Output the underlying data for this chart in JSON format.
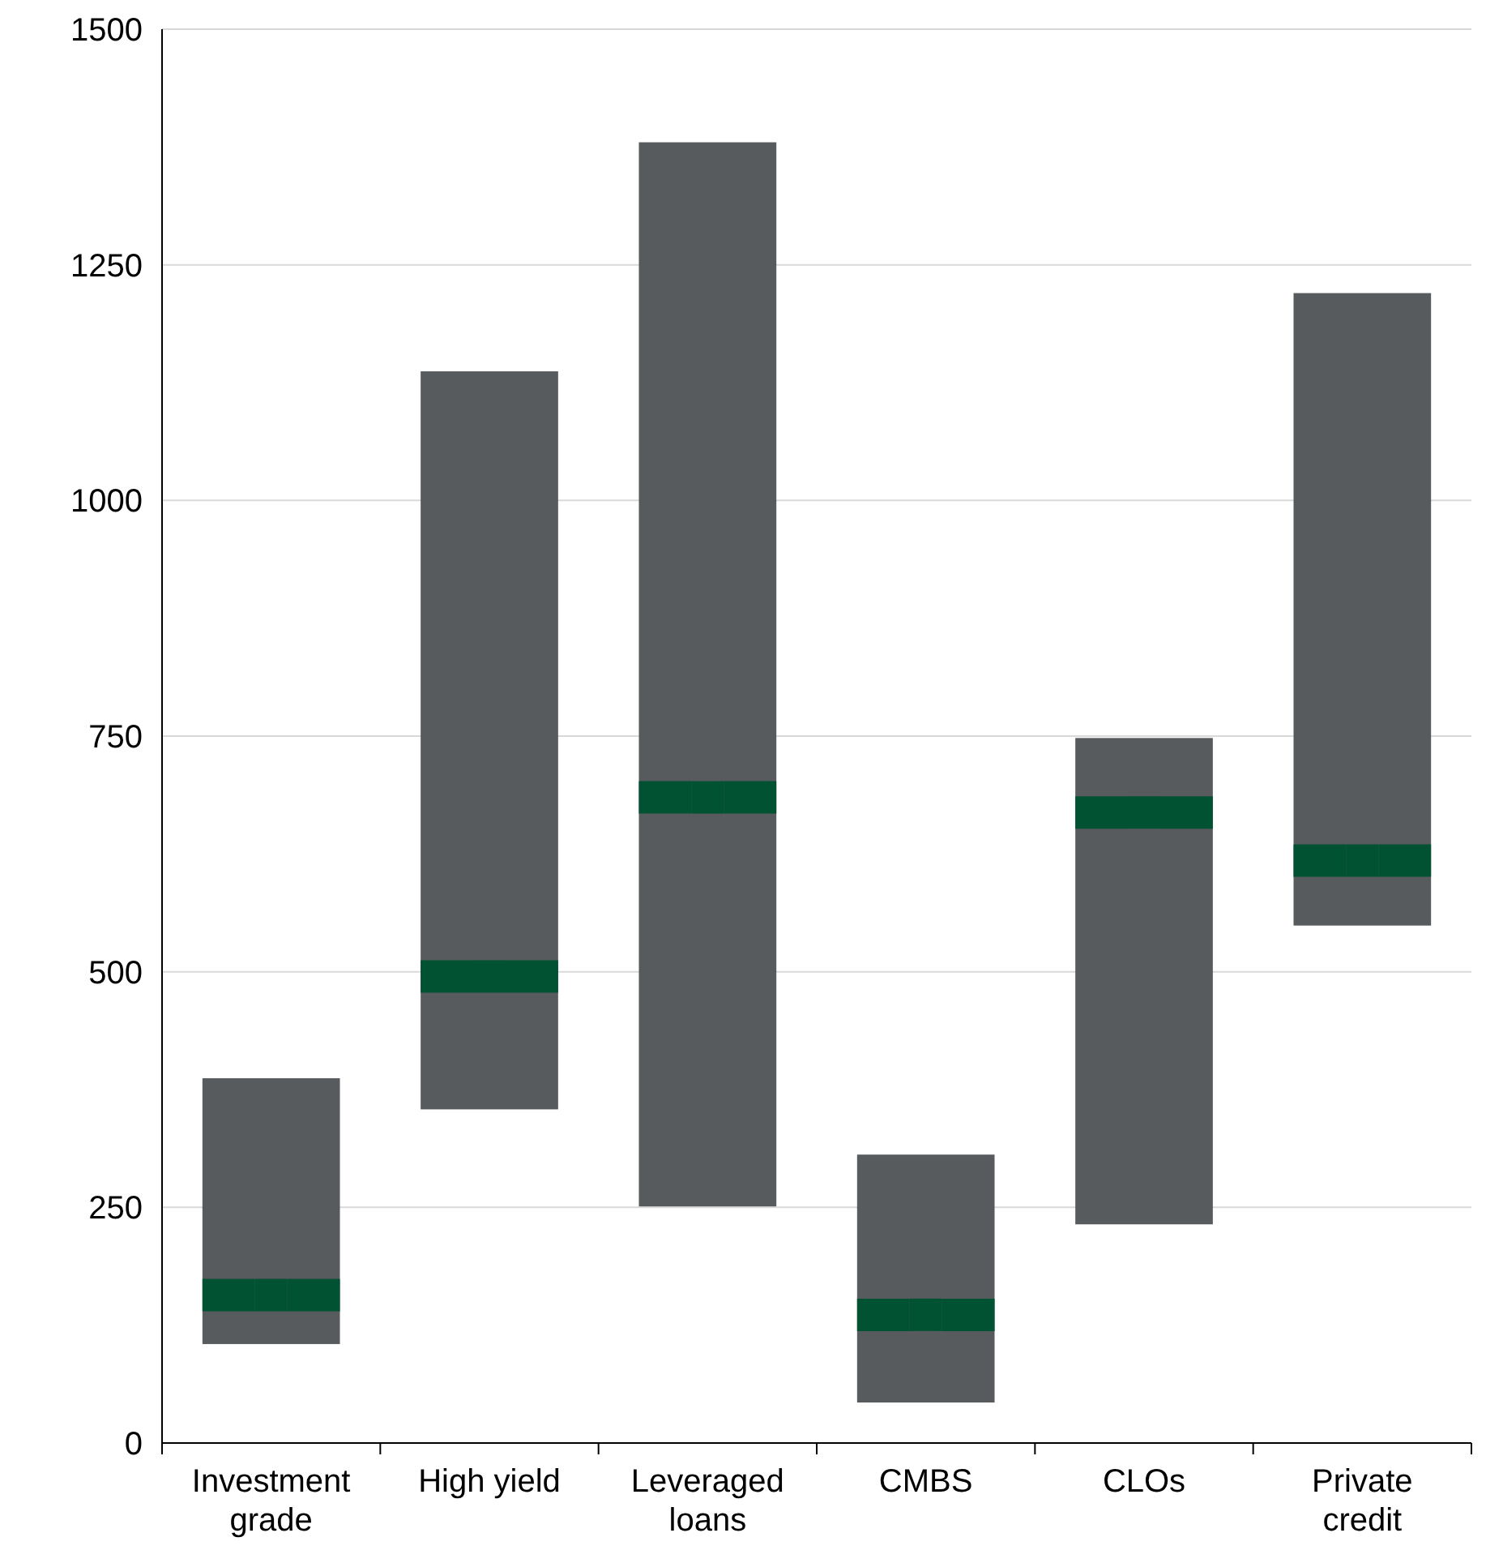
{
  "chart_data": {
    "type": "bar",
    "categories": [
      "Investment grade",
      "High yield",
      "Leveraged loans",
      "CMBS",
      "CLOs",
      "Private credit"
    ],
    "series": [
      {
        "type": "bar",
        "color": "#575b5e",
        "base": [
          105,
          354,
          251,
          43,
          232,
          549
        ],
        "values": [
          282,
          783,
          1129,
          263,
          516,
          671
        ]
      },
      {
        "type": "scatter",
        "color": "#005232",
        "x": [
          "Investment grade",
          "High yield",
          "Leveraged loans",
          "CMBS",
          "CLOs",
          "Private credit"
        ],
        "values": [
          157,
          495,
          685,
          136,
          669,
          618
        ]
      }
    ],
    "ylim": [
      0,
      1500
    ],
    "yticks": [
      0,
      250,
      500,
      750,
      1000,
      1250,
      1500
    ],
    "grid": "y"
  }
}
